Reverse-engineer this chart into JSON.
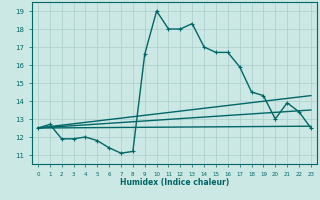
{
  "xlabel": "Humidex (Indice chaleur)",
  "ylabel": "",
  "xlim": [
    -0.5,
    23.5
  ],
  "ylim": [
    10.5,
    19.5
  ],
  "xticks": [
    0,
    1,
    2,
    3,
    4,
    5,
    6,
    7,
    8,
    9,
    10,
    11,
    12,
    13,
    14,
    15,
    16,
    17,
    18,
    19,
    20,
    21,
    22,
    23
  ],
  "yticks": [
    11,
    12,
    13,
    14,
    15,
    16,
    17,
    18,
    19
  ],
  "bg_color": "#cce8e5",
  "grid_color": "#aacfcc",
  "line_color": "#006666",
  "lines": [
    {
      "x": [
        0,
        1,
        2,
        3,
        4,
        5,
        6,
        7,
        8,
        9,
        10,
        11,
        12,
        13,
        14,
        15,
        16,
        17,
        18,
        19,
        20,
        21,
        22,
        23
      ],
      "y": [
        12.5,
        12.7,
        11.9,
        11.9,
        12.0,
        11.8,
        11.4,
        11.1,
        11.2,
        16.6,
        19.0,
        18.0,
        18.0,
        18.3,
        17.0,
        16.7,
        16.7,
        15.9,
        14.5,
        14.3,
        13.0,
        13.9,
        13.4,
        12.5
      ],
      "style": "-",
      "marker": "+",
      "lw": 1.0
    },
    {
      "x": [
        0,
        23
      ],
      "y": [
        12.5,
        12.6
      ],
      "style": "-",
      "marker": null,
      "lw": 1.0
    },
    {
      "x": [
        0,
        23
      ],
      "y": [
        12.5,
        13.5
      ],
      "style": "-",
      "marker": null,
      "lw": 1.0
    },
    {
      "x": [
        0,
        23
      ],
      "y": [
        12.5,
        14.3
      ],
      "style": "-",
      "marker": null,
      "lw": 1.0
    }
  ],
  "figsize": [
    3.2,
    2.0
  ],
  "dpi": 100
}
